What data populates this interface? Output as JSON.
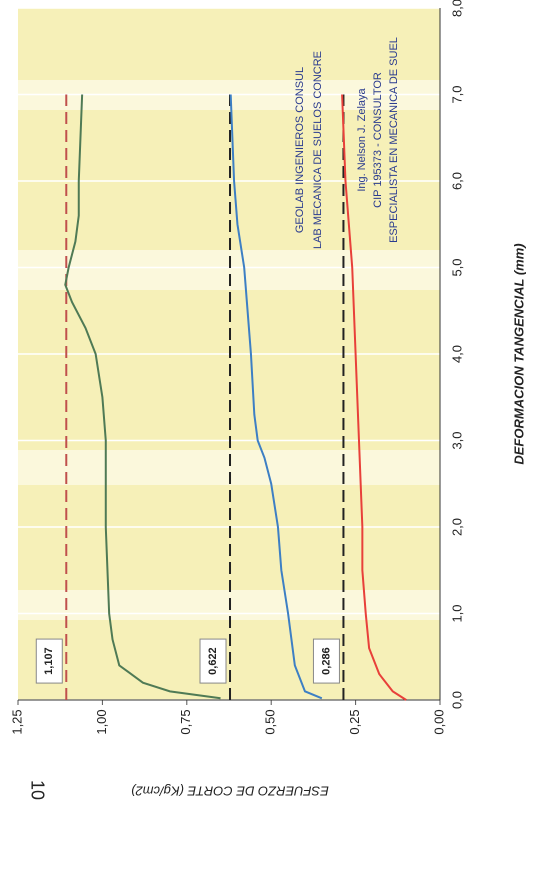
{
  "chart_data": {
    "type": "line",
    "x_label": "DEFORMACION TANGENCIAL (mm)",
    "y_label": "ESFUERZO DE CORTE (Kg/cm2)",
    "page_number": "10",
    "xlim": [
      0,
      8
    ],
    "ylim": [
      0,
      1.25
    ],
    "xticks": [
      {
        "value": 0,
        "label": "0,0"
      },
      {
        "value": 1,
        "label": "1,0"
      },
      {
        "value": 2,
        "label": "2,0"
      },
      {
        "value": 3,
        "label": "3,0"
      },
      {
        "value": 4,
        "label": "4,0"
      },
      {
        "value": 5,
        "label": "5,0"
      },
      {
        "value": 6,
        "label": "6,0"
      },
      {
        "value": 7,
        "label": "7,0"
      },
      {
        "value": 8,
        "label": "8,0"
      }
    ],
    "yticks": [
      {
        "value": 0,
        "label": "0,00"
      },
      {
        "value": 0.25,
        "label": "0,25"
      },
      {
        "value": 0.5,
        "label": "0,50"
      },
      {
        "value": 0.75,
        "label": "0,75"
      },
      {
        "value": 1,
        "label": "1,00"
      },
      {
        "value": 1.25,
        "label": "1,25"
      }
    ],
    "grid": true,
    "series": [
      {
        "color": "#4f7a55",
        "x": [
          0.02,
          0.1,
          0.2,
          0.4,
          0.7,
          1.0,
          2.0,
          3.0,
          3.5,
          4.0,
          4.3,
          4.6,
          4.8,
          5.0,
          5.3,
          5.6,
          6.0,
          7.0
        ],
        "values": [
          0.65,
          0.8,
          0.88,
          0.95,
          0.97,
          0.98,
          0.99,
          0.99,
          1.0,
          1.02,
          1.05,
          1.09,
          1.11,
          1.1,
          1.08,
          1.07,
          1.07,
          1.06
        ]
      },
      {
        "color": "#3d7fc4",
        "x": [
          0.02,
          0.1,
          0.4,
          1.0,
          1.5,
          2.0,
          2.5,
          2.8,
          3.0,
          3.3,
          4.0,
          5.0,
          5.5,
          6.0,
          7.0
        ],
        "values": [
          0.35,
          0.4,
          0.43,
          0.45,
          0.47,
          0.48,
          0.5,
          0.52,
          0.54,
          0.55,
          0.56,
          0.58,
          0.6,
          0.61,
          0.62
        ]
      },
      {
        "color": "#e8403a",
        "x": [
          0.0,
          0.1,
          0.3,
          0.6,
          1.0,
          1.5,
          2.0,
          3.0,
          4.0,
          5.0,
          6.0,
          7.0
        ],
        "values": [
          0.1,
          0.14,
          0.18,
          0.21,
          0.22,
          0.23,
          0.23,
          0.24,
          0.25,
          0.26,
          0.28,
          0.29
        ]
      }
    ],
    "reference_lines": [
      {
        "value": 1.107,
        "label": "1,107",
        "color": "#c0504d"
      },
      {
        "value": 0.622,
        "label": "0,622",
        "color": "#222222"
      },
      {
        "value": 0.286,
        "label": "0,286",
        "color": "#222222"
      }
    ],
    "annotations": [
      "GEOLAB INGENIEROS CONSUL",
      "LAB MECANICA DE SUELOS CONCRE",
      "Ing. Nelson J. Zelaya",
      "CIP 195373 - CONSULTOR",
      "ESPECIALISTA EN MECANICA DE SUEL"
    ]
  }
}
